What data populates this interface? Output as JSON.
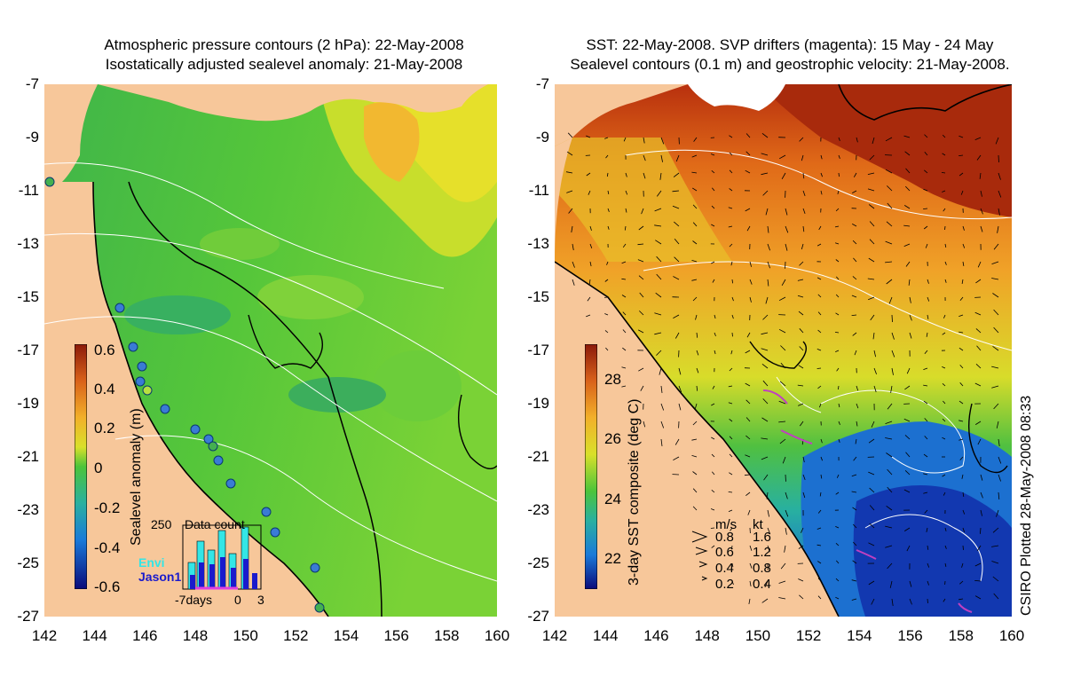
{
  "left": {
    "title_line1": "Atmospheric pressure contours (2 hPa): 22-May-2008",
    "title_line2": "Isostatically adjusted sealevel anomaly: 21-May-2008",
    "colorbar_label": "Sealevel anomaly (m)",
    "colorbar_ticks": [
      "0.6",
      "0.4",
      "0.2",
      "0",
      "-0.2",
      "-0.4",
      "-0.6"
    ],
    "inset": {
      "title": "Data count",
      "ymax": "250",
      "series1": "Envi",
      "series2": "Jason1",
      "xlabels": [
        "-7days",
        "0",
        "3"
      ],
      "series1_color": "#33e6e6",
      "series2_color": "#1a1acc"
    }
  },
  "right": {
    "title_line1": "SST: 22-May-2008. SVP drifters (magenta): 15 May - 24 May",
    "title_line2": "Sealevel contours (0.1 m) and geostrophic velocity: 21-May-2008.",
    "colorbar_label": "3-day SST composite (deg C)",
    "colorbar_ticks": [
      "28",
      "26",
      "24",
      "22"
    ],
    "legend": {
      "header_ms": "m/s",
      "header_kt": "kt",
      "rows": [
        {
          "ms": "0.8",
          "kt": "1.6"
        },
        {
          "ms": "0.6",
          "kt": "1.2"
        },
        {
          "ms": "0.4",
          "kt": "0.8"
        },
        {
          "ms": "0.2",
          "kt": "0.4"
        }
      ]
    },
    "credit": "CSIRO Plotted 28-May-2008 08:33"
  },
  "axes": {
    "y_ticks": [
      "-7",
      "-9",
      "-11",
      "-13",
      "-15",
      "-17",
      "-19",
      "-21",
      "-23",
      "-25",
      "-27"
    ],
    "x_ticks": [
      "142",
      "144",
      "146",
      "148",
      "150",
      "152",
      "154",
      "156",
      "158",
      "160"
    ]
  },
  "colors": {
    "land": "#f7c79a",
    "sla_base": "#4cc43a",
    "sst_warm": "#d2691e",
    "sst_cool": "#1f6fd0"
  }
}
